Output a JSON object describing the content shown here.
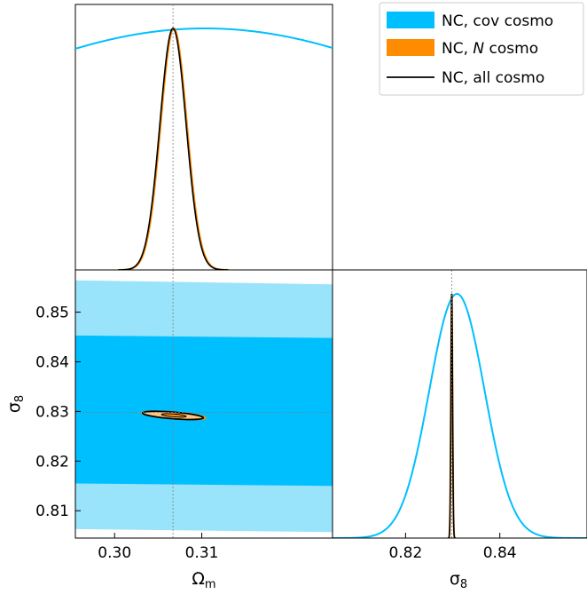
{
  "chart_data": {
    "type": "triangle_corner_plot",
    "parameters": [
      {
        "symbol": "Ω",
        "subscript": "m",
        "fiducial": 0.3067,
        "range": [
          0.2955,
          0.325
        ],
        "ticks": [
          0.3,
          0.31
        ],
        "tick_labels": [
          "0.30",
          "0.31"
        ]
      },
      {
        "symbol": "σ",
        "subscript": "8",
        "fiducial": 0.8298,
        "range": [
          0.8045,
          0.8585
        ],
        "ticks": [
          0.81,
          0.82,
          0.83,
          0.84,
          0.85
        ],
        "tick_labels": [
          "0.81",
          "0.82",
          "0.83",
          "0.84",
          "0.85"
        ]
      }
    ],
    "diag_x_axis": {
      "range": [
        0.8045,
        0.8585
      ],
      "ticks": [
        0.82,
        0.84
      ],
      "tick_labels": [
        "0.82",
        "0.84"
      ]
    },
    "series": [
      {
        "name": "NC, cov cosmo",
        "color": "#00bfff",
        "style": "filled",
        "marginal_om": {
          "mean": 0.3104,
          "sigma": 0.0355
        },
        "marginal_s8": {
          "mean": 0.8309,
          "sigma": 0.00585
        },
        "contour_2d": {
          "inner": {
            "top": [
              [
                0.2955,
                0.8453
              ],
              [
                0.325,
                0.8448
              ]
            ],
            "bottom": [
              [
                0.2955,
                0.8155
              ],
              [
                0.325,
                0.815
              ]
            ]
          },
          "outer": {
            "top": [
              [
                0.2955,
                0.8564
              ],
              [
                0.325,
                0.8556
              ]
            ],
            "bottom": [
              [
                0.2955,
                0.8063
              ],
              [
                0.325,
                0.8057
              ]
            ]
          }
        }
      },
      {
        "name": "NC, N cosmo",
        "color": "#ff8c00",
        "style": "filled",
        "marginal_om": {
          "mean": 0.3068,
          "sigma": 0.0015
        },
        "marginal_s8": {
          "mean": 0.8298,
          "sigma": 0.00018
        },
        "contour_2d": {
          "center": [
            0.3068,
            0.8292
          ],
          "rx_om": 0.0037,
          "ry_s8": 0.00055,
          "slope": -0.266
        }
      },
      {
        "name": "NC, all cosmo",
        "color": "#000000",
        "style": "line",
        "marginal_om": {
          "mean": 0.3067,
          "sigma": 0.0015
        },
        "marginal_s8": {
          "mean": 0.8298,
          "sigma": 0.00017
        },
        "contour_2d": {
          "center": [
            0.3067,
            0.8292
          ],
          "rx_om": 0.0035,
          "ry_s8": 0.0005,
          "slope": -0.266
        }
      }
    ],
    "legend": {
      "position": "top-right",
      "entries": [
        {
          "label": "NC, cov cosmo",
          "italic_part": ""
        },
        {
          "label_pre": "NC, ",
          "label_italic": "N",
          "label_post": " cosmo"
        },
        {
          "label": "NC, all cosmo"
        }
      ]
    }
  },
  "axes": {
    "xlabel_left": {
      "symbol": "Ω",
      "subscript": "m"
    },
    "xlabel_right": {
      "symbol": "σ",
      "subscript": "8"
    },
    "ylabel_left": {
      "symbol": "σ",
      "subscript": "8"
    }
  }
}
